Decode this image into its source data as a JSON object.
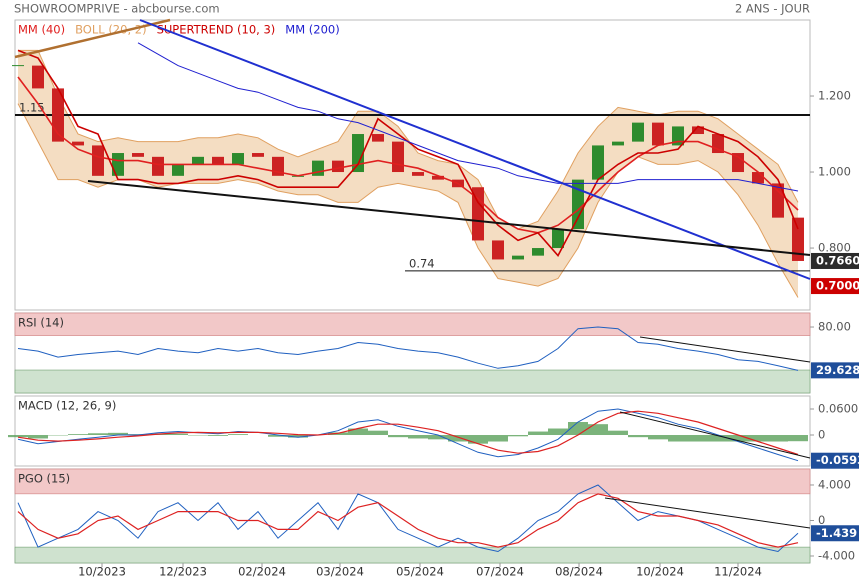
{
  "header": {
    "source": "SHOWROOMPRIVE - abcbourse.com",
    "period": "2 ANS - JOUR"
  },
  "chart_data": [
    {
      "type": "candlestick",
      "values": [
        1.28,
        1.22,
        1.08,
        1.07,
        0.99,
        1.05,
        1.04,
        0.99,
        1.02,
        1.04,
        1.02,
        1.05,
        1.04,
        0.99,
        0.99,
        1.03,
        1.0,
        1.1,
        1.08,
        1.0,
        0.99,
        0.98,
        0.96,
        0.82,
        0.77,
        0.78,
        0.8,
        0.85,
        0.98,
        1.07,
        1.08,
        1.13,
        1.07,
        1.12,
        1.1,
        1.05,
        1.0,
        0.97,
        0.88,
        0.766
      ],
      "up_color": "#2e8b2e",
      "down_color": "#cc2222",
      "xlim": [
        -0.15,
        39.6
      ],
      "ylim": [
        0.637,
        1.4
      ],
      "yticks": [
        {
          "value": 1.2,
          "label": "1.200"
        },
        {
          "value": 1.0,
          "label": "1.000"
        },
        {
          "value": 0.8,
          "label": "0.800"
        }
      ],
      "series": [
        {
          "name": "MM (40)",
          "color": "#e02020",
          "values": [
            1.25,
            1.18,
            1.1,
            1.06,
            1.04,
            1.03,
            1.03,
            1.02,
            1.02,
            1.02,
            1.02,
            1.02,
            1.01,
            1.0,
            0.99,
            1.0,
            1.01,
            1.02,
            1.03,
            1.02,
            1.01,
            0.99,
            0.97,
            0.93,
            0.88,
            0.85,
            0.84,
            0.86,
            0.9,
            0.95,
            1.0,
            1.04,
            1.07,
            1.08,
            1.08,
            1.06,
            1.04,
            1.0,
            0.95,
            0.9
          ]
        },
        {
          "name": "BOLL (20, 2)",
          "color": "#e0a060",
          "upper": [
            1.32,
            1.32,
            1.2,
            1.1,
            1.08,
            1.09,
            1.08,
            1.08,
            1.08,
            1.09,
            1.09,
            1.1,
            1.09,
            1.06,
            1.04,
            1.06,
            1.08,
            1.16,
            1.16,
            1.12,
            1.05,
            1.03,
            1.02,
            0.98,
            0.88,
            0.85,
            0.87,
            0.95,
            1.05,
            1.12,
            1.17,
            1.16,
            1.15,
            1.16,
            1.16,
            1.14,
            1.1,
            1.06,
            1.02,
            0.92
          ],
          "lower": [
            1.18,
            1.08,
            0.98,
            0.98,
            0.96,
            0.98,
            0.98,
            0.96,
            0.97,
            0.97,
            0.97,
            0.98,
            0.97,
            0.95,
            0.94,
            0.94,
            0.92,
            0.92,
            0.96,
            0.97,
            0.96,
            0.95,
            0.92,
            0.8,
            0.72,
            0.71,
            0.7,
            0.72,
            0.8,
            0.92,
            1.0,
            1.04,
            1.02,
            1.02,
            1.03,
            1.0,
            0.94,
            0.86,
            0.76,
            0.67
          ]
        },
        {
          "name": "SUPERTREND (10, 3)",
          "color": "#cc0000",
          "values": [
            1.32,
            1.3,
            1.22,
            1.12,
            1.1,
            0.98,
            0.98,
            0.97,
            0.97,
            0.98,
            0.98,
            0.99,
            0.98,
            0.96,
            0.96,
            0.96,
            0.96,
            1.02,
            1.14,
            1.1,
            1.06,
            1.04,
            1.02,
            0.92,
            0.86,
            0.82,
            0.84,
            0.78,
            0.88,
            0.98,
            1.02,
            1.05,
            1.05,
            1.06,
            1.12,
            1.1,
            1.08,
            1.04,
            0.98,
            0.85
          ]
        },
        {
          "name": "MM (200)",
          "color": "#2020d0",
          "values": [
            null,
            null,
            null,
            null,
            null,
            null,
            1.34,
            1.31,
            1.28,
            1.26,
            1.24,
            1.22,
            1.21,
            1.19,
            1.17,
            1.16,
            1.14,
            1.13,
            1.11,
            1.09,
            1.07,
            1.05,
            1.03,
            1.02,
            1.01,
            0.99,
            0.98,
            0.97,
            0.97,
            0.97,
            0.97,
            0.98,
            0.98,
            0.98,
            0.98,
            0.98,
            0.98,
            0.97,
            0.96,
            0.95
          ]
        }
      ],
      "levels": [
        1.15,
        0.74
      ],
      "tags": [
        {
          "value": 0.766,
          "label": "0.7660",
          "color": "#2b2b2b"
        },
        {
          "value": 0.7,
          "label": "0.7000",
          "color": "#cc0000"
        }
      ]
    },
    {
      "type": "line",
      "title": "RSI (14)",
      "color": "#2060c0",
      "values": [
        55,
        52,
        45,
        48,
        50,
        52,
        48,
        55,
        52,
        50,
        55,
        52,
        55,
        50,
        48,
        52,
        55,
        62,
        60,
        55,
        52,
        50,
        45,
        38,
        32,
        35,
        40,
        55,
        78,
        80,
        78,
        62,
        60,
        55,
        52,
        48,
        42,
        40,
        35,
        29.628
      ],
      "xlim": [
        -0.15,
        39.6
      ],
      "ylim": [
        3.3,
        96.3
      ],
      "yticks": [
        {
          "value": 80,
          "label": "80.00"
        }
      ],
      "overbought": 70,
      "oversold": 30,
      "tags": [
        29.628
      ],
      "tag_color": "#1f4e9a"
    },
    {
      "type": "macd",
      "title": "MACD (12, 26, 9)",
      "color": "#2060c0",
      "signal_color": "#dd2222",
      "histogram_color": "#5aa05a",
      "values": [
        -0.01,
        -0.02,
        -0.015,
        -0.01,
        -0.005,
        0,
        0,
        0.005,
        0.008,
        0.005,
        0.003,
        0.008,
        0.006,
        0,
        -0.005,
        0,
        0.01,
        0.03,
        0.035,
        0.02,
        0.01,
        0,
        -0.02,
        -0.04,
        -0.05,
        -0.045,
        -0.03,
        -0.01,
        0.03,
        0.055,
        0.06,
        0.05,
        0.04,
        0.025,
        0.015,
        0,
        -0.015,
        -0.03,
        -0.045,
        -0.0593
      ],
      "signal": [
        -0.005,
        -0.012,
        -0.014,
        -0.012,
        -0.009,
        -0.005,
        -0.002,
        0.002,
        0.005,
        0.006,
        0.005,
        0.006,
        0.006,
        0.004,
        0.001,
        0,
        0.004,
        0.015,
        0.025,
        0.025,
        0.018,
        0.01,
        -0.005,
        -0.02,
        -0.035,
        -0.042,
        -0.038,
        -0.025,
        0,
        0.03,
        0.05,
        0.055,
        0.05,
        0.04,
        0.03,
        0.015,
        0,
        -0.015,
        -0.03,
        -0.045
      ],
      "histogram": [
        -0.005,
        -0.008,
        -0.001,
        0.002,
        0.004,
        0.005,
        0.002,
        0.003,
        0.003,
        -0.001,
        -0.002,
        0.002,
        0,
        -0.004,
        -0.006,
        0,
        0.006,
        0.015,
        0.01,
        -0.005,
        -0.008,
        -0.01,
        -0.015,
        -0.02,
        -0.015,
        -0.003,
        0.008,
        0.015,
        0.03,
        0.025,
        0.01,
        -0.005,
        -0.01,
        -0.015,
        -0.015,
        -0.015,
        -0.015,
        -0.015,
        -0.015,
        -0.0143
      ],
      "xlim": [
        -0.15,
        39.6
      ],
      "ylim": [
        -0.0715,
        0.09
      ],
      "yticks": [
        {
          "value": 0.06,
          "label": "0.0600"
        },
        0
      ],
      "tags": [
        -0.0593
      ],
      "tag_color": "#1f4e9a"
    },
    {
      "type": "line",
      "title": "PGO (15)",
      "color": "#2060c0",
      "signal_color": "#dd2222",
      "values": [
        2,
        -3,
        -2,
        -1,
        1,
        0,
        -2,
        1,
        2,
        0,
        2,
        -1,
        1,
        -2,
        0,
        2,
        -1,
        3,
        2,
        -1,
        -2,
        -3,
        -2,
        -3,
        -3.5,
        -2,
        0,
        1,
        3,
        4,
        2,
        0,
        1,
        0.5,
        0,
        -1,
        -2,
        -3,
        -3.5,
        -1.439
      ],
      "signal": [
        1,
        -1,
        -2,
        -1.5,
        0,
        0.5,
        -1,
        0,
        1,
        1,
        1,
        0,
        0,
        -1,
        -1,
        1,
        0,
        1.5,
        2,
        0.5,
        -1,
        -2,
        -2.5,
        -2.5,
        -3,
        -2.5,
        -1,
        0,
        2,
        3,
        2.5,
        1,
        0.5,
        0.5,
        0,
        -0.5,
        -1.5,
        -2.5,
        -3,
        -2.5
      ],
      "xlim": [
        -0.15,
        39.6
      ],
      "ylim": [
        -4.79,
        5.8
      ],
      "yticks": [
        {
          "value": 4,
          "label": "4.000"
        },
        0,
        {
          "value": -4,
          "label": "-4.000"
        }
      ],
      "overbought": 3,
      "oversold": -3,
      "tags": [
        -1.439
      ],
      "tag_color": "#1f4e9a",
      "xticks": [
        {
          "value": 4.2,
          "label": "10/2023"
        },
        {
          "value": 8.25,
          "label": "12/2023"
        },
        {
          "value": 12.2,
          "label": "02/2024"
        },
        {
          "value": 16.1,
          "label": "03/2024"
        },
        {
          "value": 20.1,
          "label": "05/2024"
        },
        {
          "value": 24.1,
          "label": "07/2024"
        },
        {
          "value": 28.05,
          "label": "08/2024"
        },
        {
          "value": 32.1,
          "label": "10/2024"
        },
        {
          "value": 36.0,
          "label": "11/2024"
        }
      ]
    }
  ]
}
